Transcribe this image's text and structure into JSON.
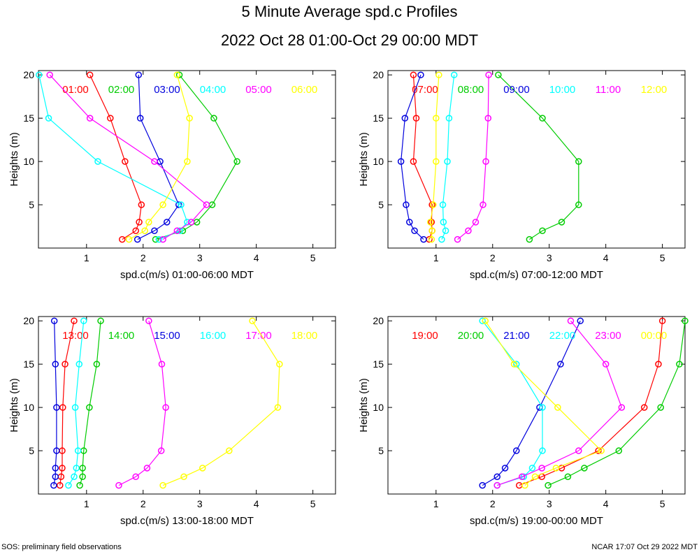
{
  "title": "5 Minute Average spd.c Profiles",
  "subtitle": "2022 Oct 28 01:00-Oct 29 00:00 MDT",
  "footer_left": "SOS: preliminary field observations",
  "footer_right": "NCAR 17:07 Oct 29 2022 MDT",
  "chart_data": [
    {
      "type": "line",
      "xlabel": "spd.c(m/s) 01:00-06:00 MDT",
      "ylabel": "Heights (m)",
      "xlim": [
        0.15,
        5.4
      ],
      "ylim": [
        0,
        20.5
      ],
      "xticks": [
        1,
        2,
        3,
        4,
        5
      ],
      "yticks": [
        5,
        10,
        15,
        20
      ],
      "heights": [
        1,
        2,
        3,
        5,
        10,
        15,
        20
      ],
      "series": [
        {
          "name": "01:00",
          "color": "#ff0000",
          "values": [
            1.63,
            1.87,
            1.93,
            1.97,
            1.68,
            1.42,
            1.06
          ]
        },
        {
          "name": "02:00",
          "color": "#00cc00",
          "values": [
            2.22,
            2.7,
            2.95,
            3.22,
            3.66,
            3.25,
            2.64
          ]
        },
        {
          "name": "03:00",
          "color": "#0000dd",
          "values": [
            1.9,
            2.2,
            2.42,
            2.63,
            2.3,
            1.95,
            1.92
          ]
        },
        {
          "name": "04:00",
          "color": "#00ffff",
          "values": [
            2.28,
            2.65,
            2.78,
            2.67,
            1.2,
            0.33,
            0.16
          ]
        },
        {
          "name": "05:00",
          "color": "#ff00ff",
          "values": [
            2.35,
            2.6,
            2.85,
            3.12,
            2.2,
            1.06,
            0.35
          ]
        },
        {
          "name": "06:00",
          "color": "#ffff00",
          "values": [
            1.75,
            2.03,
            2.1,
            2.35,
            2.78,
            2.82,
            2.6
          ]
        }
      ]
    },
    {
      "type": "line",
      "xlabel": "spd.c(m/s) 07:00-12:00 MDT",
      "ylabel": "Heights (m)",
      "xlim": [
        0.15,
        5.4
      ],
      "ylim": [
        0,
        20.5
      ],
      "xticks": [
        1,
        2,
        3,
        4,
        5
      ],
      "yticks": [
        5,
        10,
        15,
        20
      ],
      "heights": [
        1,
        2,
        3,
        5,
        10,
        15,
        20
      ],
      "series": [
        {
          "name": "07:00",
          "color": "#ff0000",
          "values": [
            0.88,
            0.93,
            0.92,
            0.93,
            0.6,
            0.65,
            0.6
          ]
        },
        {
          "name": "08:00",
          "color": "#00cc00",
          "values": [
            2.65,
            2.88,
            3.22,
            3.52,
            3.52,
            2.88,
            2.1
          ]
        },
        {
          "name": "09:00",
          "color": "#0000dd",
          "values": [
            0.78,
            0.62,
            0.53,
            0.47,
            0.38,
            0.45,
            0.73
          ]
        },
        {
          "name": "10:00",
          "color": "#00ffff",
          "values": [
            1.1,
            1.17,
            1.13,
            1.12,
            1.2,
            1.23,
            1.32
          ]
        },
        {
          "name": "11:00",
          "color": "#ff00ff",
          "values": [
            1.38,
            1.57,
            1.7,
            1.83,
            1.88,
            1.92,
            1.93
          ]
        },
        {
          "name": "12:00",
          "color": "#ffff00",
          "values": [
            0.92,
            0.93,
            0.9,
            0.95,
            1.0,
            1.0,
            1.05
          ]
        }
      ]
    },
    {
      "type": "line",
      "xlabel": "spd.c(m/s) 13:00-18:00 MDT",
      "ylabel": "Heights (m)",
      "xlim": [
        0.15,
        5.4
      ],
      "ylim": [
        0,
        20.5
      ],
      "xticks": [
        1,
        2,
        3,
        4,
        5
      ],
      "yticks": [
        5,
        10,
        15,
        20
      ],
      "heights": [
        1,
        2,
        3,
        5,
        10,
        15,
        20
      ],
      "series": [
        {
          "name": "13:00",
          "color": "#ff0000",
          "values": [
            0.53,
            0.55,
            0.57,
            0.57,
            0.58,
            0.62,
            0.78
          ]
        },
        {
          "name": "14:00",
          "color": "#00cc00",
          "values": [
            0.88,
            0.93,
            0.93,
            0.95,
            1.05,
            1.18,
            1.25
          ]
        },
        {
          "name": "15:00",
          "color": "#0000dd",
          "values": [
            0.42,
            0.45,
            0.45,
            0.47,
            0.47,
            0.45,
            0.43
          ]
        },
        {
          "name": "16:00",
          "color": "#00ffff",
          "values": [
            0.68,
            0.78,
            0.82,
            0.85,
            0.8,
            0.87,
            0.95
          ]
        },
        {
          "name": "17:00",
          "color": "#ff00ff",
          "values": [
            1.57,
            1.87,
            2.07,
            2.32,
            2.4,
            2.33,
            2.1
          ]
        },
        {
          "name": "18:00",
          "color": "#ffff00",
          "values": [
            2.35,
            2.72,
            3.05,
            3.52,
            4.38,
            4.41,
            3.93
          ]
        }
      ]
    },
    {
      "type": "line",
      "xlabel": "spd.c(m/s) 19:00-00:00 MDT",
      "ylabel": "Heights (m)",
      "xlim": [
        0.15,
        5.4
      ],
      "ylim": [
        0,
        20.5
      ],
      "xticks": [
        1,
        2,
        3,
        4,
        5
      ],
      "yticks": [
        5,
        10,
        15,
        20
      ],
      "heights": [
        1,
        2,
        3,
        5,
        10,
        15,
        20
      ],
      "series": [
        {
          "name": "19:00",
          "color": "#ff0000",
          "values": [
            2.47,
            2.87,
            3.22,
            3.87,
            4.68,
            4.93,
            5.0
          ]
        },
        {
          "name": "20:00",
          "color": "#00cc00",
          "values": [
            2.98,
            3.33,
            3.62,
            4.23,
            4.97,
            5.3,
            5.4
          ]
        },
        {
          "name": "21:00",
          "color": "#0000dd",
          "values": [
            1.82,
            2.08,
            2.22,
            2.42,
            2.83,
            3.2,
            3.55
          ]
        },
        {
          "name": "22:00",
          "color": "#00ffff",
          "values": [
            2.08,
            2.55,
            2.7,
            2.88,
            2.88,
            2.42,
            1.82
          ]
        },
        {
          "name": "23:00",
          "color": "#ff00ff",
          "values": [
            2.08,
            2.52,
            2.87,
            3.52,
            4.28,
            4.0,
            3.38
          ]
        },
        {
          "name": "00:00",
          "color": "#ffff00",
          "values": [
            2.57,
            2.75,
            3.12,
            3.92,
            3.15,
            2.38,
            1.87
          ]
        }
      ]
    }
  ]
}
